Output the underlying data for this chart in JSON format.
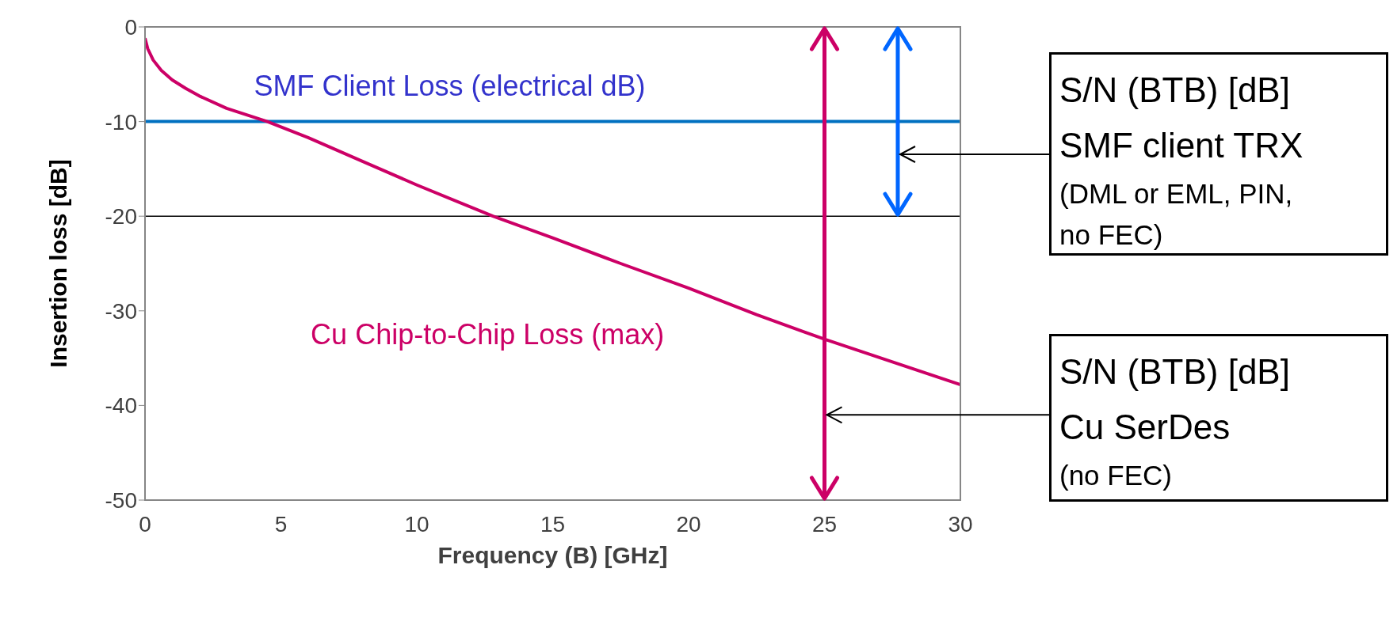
{
  "chart_data": {
    "type": "line",
    "xlabel": "Frequency (B) [GHz]",
    "ylabel": "Insertion loss [dB]",
    "xlim": [
      0,
      30
    ],
    "xticks": [
      0,
      5,
      10,
      15,
      20,
      25,
      30
    ],
    "ylim": [
      -50,
      0
    ],
    "yticks": [
      -50,
      -40,
      -30,
      -20,
      -10,
      0
    ],
    "grid": false,
    "marker": "none",
    "line_style": "solid",
    "series": [
      {
        "name": "Cu Chip-to-Chip Loss (max)",
        "color": "#cc0066",
        "x": [
          0,
          0.1,
          0.3,
          0.6,
          1,
          1.5,
          2,
          3,
          4.5,
          6,
          8,
          10,
          12.8,
          15,
          17.5,
          20,
          22.5,
          25,
          27.5,
          30
        ],
        "values": [
          -1.2,
          -2.3,
          -3.5,
          -4.6,
          -5.6,
          -6.5,
          -7.3,
          -8.6,
          -10,
          -11.7,
          -14.2,
          -16.7,
          -20,
          -22.3,
          -25,
          -27.6,
          -30.4,
          -33,
          -35.4,
          -37.8
        ]
      }
    ],
    "ref_lines": [
      {
        "axis": "y",
        "value": -10,
        "label": "SMF Client Loss (electrical dB)",
        "color": "#0070c0"
      },
      {
        "axis": "y",
        "value": -20,
        "color": "#000000"
      },
      {
        "axis": "x",
        "value": 25,
        "color": "#cc0066"
      }
    ],
    "annotations": [
      "S/N (BTB) [dB]\nSMF client TRX\n(DML or EML, PIN,\nno FEC)",
      {
        "text": "S/N (BTB) [dB]\nCu SerDes\n(no FEC)",
        "x": 25,
        "y": -41
      }
    ]
  }
}
